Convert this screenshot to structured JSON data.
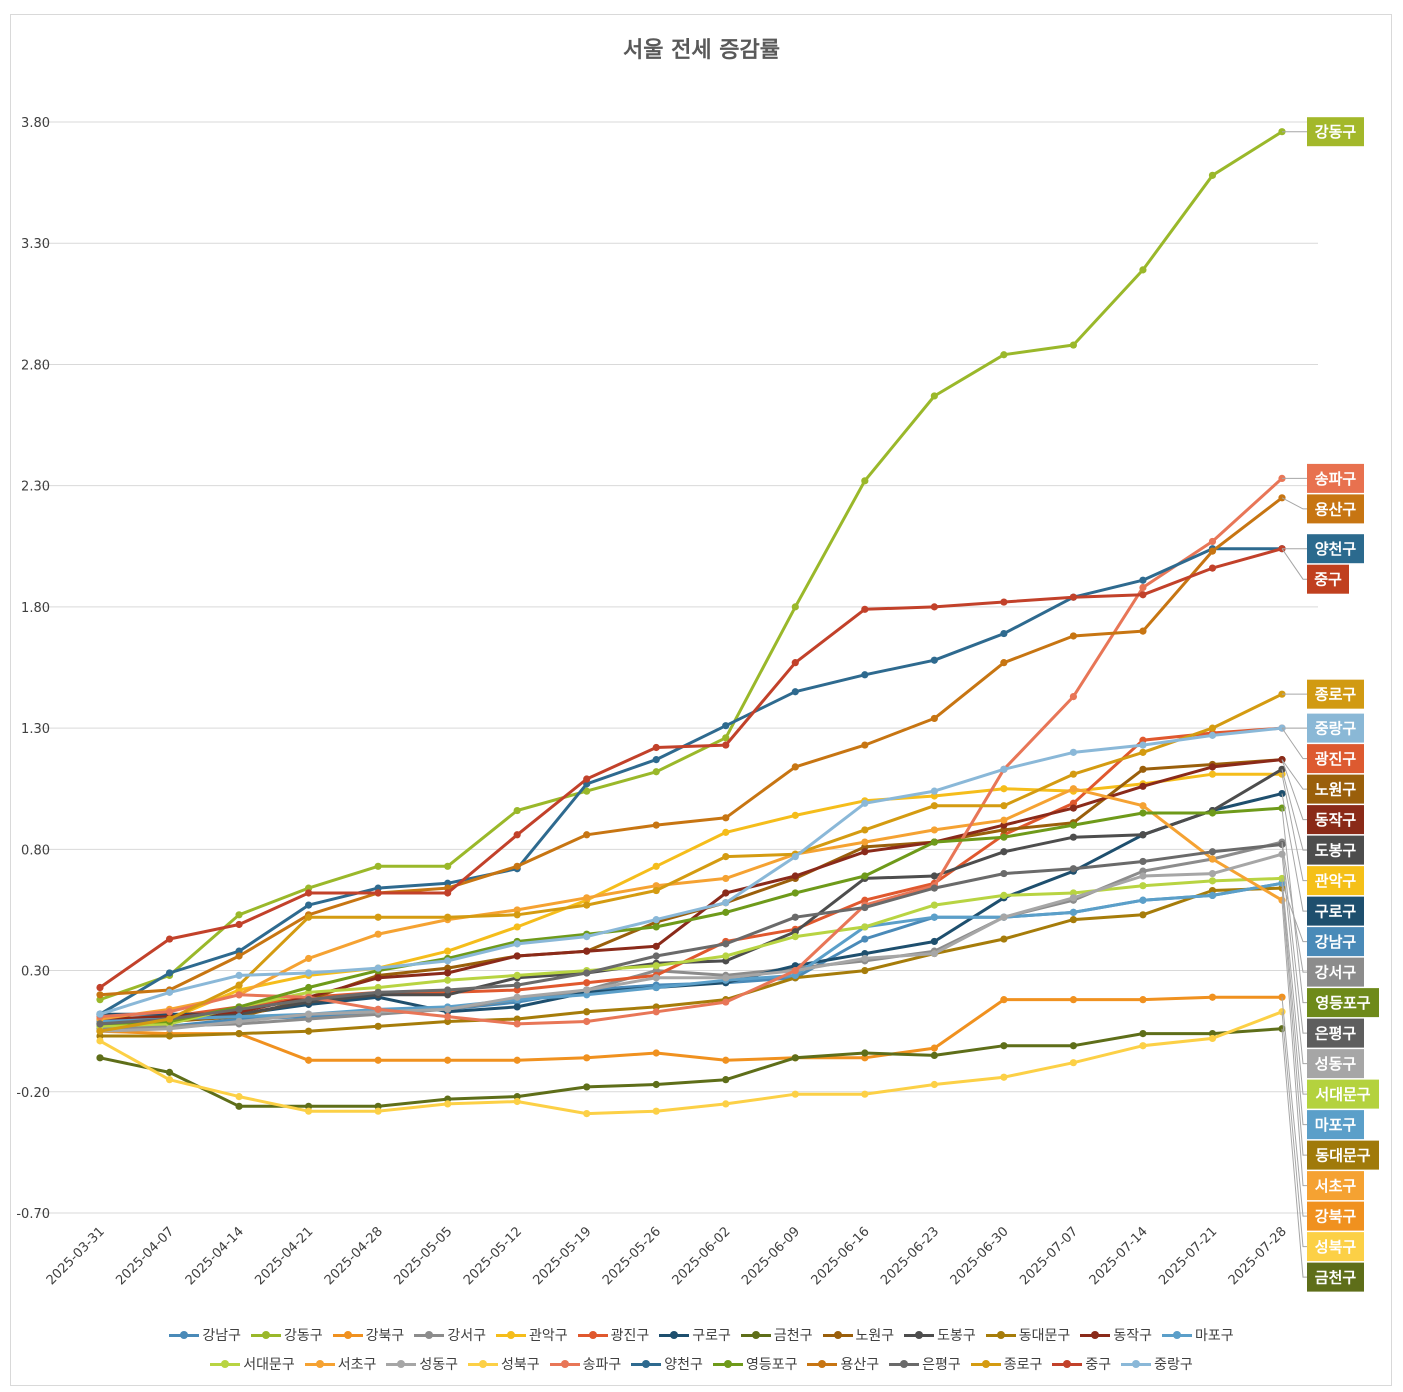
{
  "chart_data": {
    "type": "line",
    "title": "서울 전세 증감률",
    "xlabel": "",
    "ylabel": "",
    "ylim": [
      -0.7,
      4.05
    ],
    "yticks": [
      "-0.70",
      "-0.20",
      "0.30",
      "0.80",
      "1.30",
      "1.80",
      "2.30",
      "2.80",
      "3.30",
      "3.80"
    ],
    "grid": true,
    "legend_position": "bottom",
    "x": [
      "2025-03-31",
      "2025-04-07",
      "2025-04-14",
      "2025-04-21",
      "2025-04-28",
      "2025-05-05",
      "2025-05-12",
      "2025-05-19",
      "2025-05-26",
      "2025-06-02",
      "2025-06-09",
      "2025-06-16",
      "2025-06-23",
      "2025-06-30",
      "2025-07-07",
      "2025-07-14",
      "2025-07-21",
      "2025-07-28"
    ],
    "series": [
      {
        "name": "강남구",
        "color": "#4a8ab8",
        "values": [
          0.07,
          0.07,
          0.1,
          0.11,
          0.13,
          0.14,
          0.17,
          0.22,
          0.24,
          0.25,
          0.27,
          0.43,
          0.52,
          0.52,
          0.54,
          0.59,
          0.61,
          0.66
        ]
      },
      {
        "name": "강동구",
        "color": "#9ab82a",
        "values": [
          0.18,
          0.28,
          0.53,
          0.64,
          0.73,
          0.73,
          0.96,
          1.04,
          1.12,
          1.26,
          1.8,
          2.32,
          2.67,
          2.84,
          2.88,
          3.19,
          3.58,
          3.76
        ]
      },
      {
        "name": "강북구",
        "color": "#f0911f",
        "values": [
          0.05,
          0.04,
          0.04,
          -0.07,
          -0.07,
          -0.07,
          -0.07,
          -0.06,
          -0.04,
          -0.07,
          -0.06,
          -0.06,
          -0.02,
          0.18,
          0.18,
          0.18,
          0.19,
          0.19
        ]
      },
      {
        "name": "강서구",
        "color": "#8c8c8c",
        "values": [
          0.06,
          0.07,
          0.08,
          0.1,
          0.12,
          0.14,
          0.18,
          0.22,
          0.3,
          0.28,
          0.31,
          0.34,
          0.38,
          0.52,
          0.59,
          0.71,
          0.76,
          0.83
        ]
      },
      {
        "name": "관악구",
        "color": "#f5bd1b",
        "values": [
          0.09,
          0.1,
          0.22,
          0.28,
          0.31,
          0.38,
          0.48,
          0.59,
          0.73,
          0.87,
          0.94,
          1.0,
          1.02,
          1.05,
          1.04,
          1.07,
          1.11,
          1.11
        ]
      },
      {
        "name": "광진구",
        "color": "#e0582e",
        "values": [
          0.1,
          0.11,
          0.15,
          0.19,
          0.21,
          0.21,
          0.22,
          0.25,
          0.28,
          0.42,
          0.47,
          0.59,
          0.66,
          0.86,
          0.99,
          1.25,
          1.28,
          1.3
        ]
      },
      {
        "name": "구로구",
        "color": "#1e4f6e",
        "values": [
          0.12,
          0.12,
          0.12,
          0.16,
          0.19,
          0.13,
          0.15,
          0.21,
          0.23,
          0.25,
          0.32,
          0.37,
          0.42,
          0.6,
          0.71,
          0.86,
          0.96,
          1.03
        ]
      },
      {
        "name": "금천구",
        "color": "#5e6e19",
        "values": [
          -0.06,
          -0.12,
          -0.26,
          -0.26,
          -0.26,
          -0.23,
          -0.22,
          -0.18,
          -0.17,
          -0.15,
          -0.06,
          -0.04,
          -0.05,
          -0.01,
          -0.01,
          0.04,
          0.04,
          0.06
        ]
      },
      {
        "name": "노원구",
        "color": "#9a5f0b",
        "values": [
          0.09,
          0.09,
          0.11,
          0.18,
          0.28,
          0.31,
          0.36,
          0.38,
          0.5,
          0.58,
          0.68,
          0.81,
          0.83,
          0.88,
          0.91,
          1.13,
          1.15,
          1.17
        ]
      },
      {
        "name": "도봉구",
        "color": "#4d4d4d",
        "values": [
          0.08,
          0.1,
          0.12,
          0.17,
          0.2,
          0.2,
          0.27,
          0.29,
          0.33,
          0.34,
          0.46,
          0.68,
          0.69,
          0.79,
          0.85,
          0.86,
          0.96,
          1.13
        ]
      },
      {
        "name": "동대문구",
        "color": "#a67c0a",
        "values": [
          0.03,
          0.03,
          0.04,
          0.05,
          0.07,
          0.09,
          0.1,
          0.13,
          0.15,
          0.18,
          0.27,
          0.3,
          0.37,
          0.43,
          0.51,
          0.53,
          0.63,
          0.64
        ]
      },
      {
        "name": "동작구",
        "color": "#8a2a1a",
        "values": [
          0.1,
          0.11,
          0.13,
          0.19,
          0.27,
          0.29,
          0.36,
          0.38,
          0.4,
          0.62,
          0.69,
          0.79,
          0.83,
          0.9,
          0.97,
          1.06,
          1.14,
          1.17
        ]
      },
      {
        "name": "마포구",
        "color": "#5b9fc9",
        "values": [
          0.09,
          0.1,
          0.11,
          0.12,
          0.14,
          0.15,
          0.18,
          0.2,
          0.23,
          0.26,
          0.28,
          0.48,
          0.52,
          0.52,
          0.54,
          0.59,
          0.61,
          0.66
        ]
      },
      {
        "name": "서대문구",
        "color": "#b8d442",
        "values": [
          0.07,
          0.08,
          0.15,
          0.21,
          0.23,
          0.26,
          0.28,
          0.3,
          0.32,
          0.36,
          0.44,
          0.48,
          0.57,
          0.61,
          0.62,
          0.65,
          0.67,
          0.68
        ]
      },
      {
        "name": "서초구",
        "color": "#f5a232",
        "values": [
          0.1,
          0.14,
          0.2,
          0.35,
          0.45,
          0.51,
          0.55,
          0.6,
          0.65,
          0.68,
          0.78,
          0.83,
          0.88,
          0.92,
          1.05,
          0.98,
          0.76,
          0.59
        ]
      },
      {
        "name": "성동구",
        "color": "#a6a6a6",
        "values": [
          0.05,
          0.06,
          0.09,
          0.12,
          0.13,
          0.14,
          0.19,
          0.22,
          0.27,
          0.27,
          0.3,
          0.35,
          0.37,
          0.52,
          0.6,
          0.69,
          0.7,
          0.78
        ]
      },
      {
        "name": "성북구",
        "color": "#fcd046",
        "values": [
          0.01,
          -0.15,
          -0.22,
          -0.28,
          -0.28,
          -0.25,
          -0.24,
          -0.29,
          -0.28,
          -0.25,
          -0.21,
          -0.21,
          -0.17,
          -0.14,
          -0.08,
          -0.01,
          0.02,
          0.13
        ]
      },
      {
        "name": "송파구",
        "color": "#e87657",
        "values": [
          0.11,
          0.13,
          0.2,
          0.19,
          0.14,
          0.11,
          0.08,
          0.09,
          0.13,
          0.17,
          0.3,
          0.57,
          0.65,
          1.13,
          1.43,
          1.88,
          2.07,
          2.33
        ]
      },
      {
        "name": "양천구",
        "color": "#2e6a8f",
        "values": [
          0.12,
          0.29,
          0.38,
          0.57,
          0.64,
          0.66,
          0.72,
          1.07,
          1.17,
          1.31,
          1.45,
          1.52,
          1.58,
          1.69,
          1.84,
          1.91,
          2.04,
          2.04
        ]
      },
      {
        "name": "영등포구",
        "color": "#6e9a1a",
        "values": [
          0.08,
          0.09,
          0.15,
          0.23,
          0.3,
          0.35,
          0.42,
          0.45,
          0.48,
          0.54,
          0.62,
          0.69,
          0.83,
          0.85,
          0.9,
          0.95,
          0.95,
          0.97
        ]
      },
      {
        "name": "용산구",
        "color": "#c77512",
        "values": [
          0.2,
          0.22,
          0.36,
          0.53,
          0.62,
          0.64,
          0.73,
          0.86,
          0.9,
          0.93,
          1.14,
          1.23,
          1.34,
          1.57,
          1.68,
          1.7,
          2.03,
          2.25
        ]
      },
      {
        "name": "은평구",
        "color": "#6a6a6a",
        "values": [
          0.08,
          0.1,
          0.14,
          0.18,
          0.21,
          0.22,
          0.24,
          0.29,
          0.36,
          0.41,
          0.52,
          0.56,
          0.64,
          0.7,
          0.72,
          0.75,
          0.79,
          0.82
        ]
      },
      {
        "name": "종로구",
        "color": "#d49b11",
        "values": [
          0.05,
          0.1,
          0.24,
          0.52,
          0.52,
          0.52,
          0.53,
          0.57,
          0.63,
          0.77,
          0.78,
          0.88,
          0.98,
          0.98,
          1.11,
          1.2,
          1.3,
          1.44
        ]
      },
      {
        "name": "중구",
        "color": "#c2412a",
        "values": [
          0.23,
          0.43,
          0.49,
          0.62,
          0.62,
          0.62,
          0.86,
          1.09,
          1.22,
          1.23,
          1.57,
          1.79,
          1.8,
          1.82,
          1.84,
          1.85,
          1.96,
          2.04
        ]
      },
      {
        "name": "중랑구",
        "color": "#8ab8d8",
        "values": [
          0.12,
          0.21,
          0.28,
          0.29,
          0.31,
          0.34,
          0.41,
          0.44,
          0.51,
          0.58,
          0.77,
          0.99,
          1.04,
          1.13,
          1.2,
          1.23,
          1.27,
          1.3
        ]
      }
    ],
    "end_labels": [
      {
        "name": "강동구",
        "color": "#a3b82a",
        "text_color": "#ffffff"
      },
      {
        "name": "송파구",
        "color": "#e8714f",
        "text_color": "#ffffff"
      },
      {
        "name": "용산구",
        "color": "#c77512",
        "text_color": "#ffffff"
      },
      {
        "name": "양천구",
        "color": "#2b6a8e",
        "text_color": "#ffffff"
      },
      {
        "name": "중구",
        "color": "#c0401f",
        "text_color": "#ffffff"
      },
      {
        "name": "종로구",
        "color": "#d19a12",
        "text_color": "#ffffff"
      },
      {
        "name": "중랑구",
        "color": "#8ab8d6",
        "text_color": "#ffffff"
      },
      {
        "name": "광진구",
        "color": "#dd5a30",
        "text_color": "#ffffff"
      },
      {
        "name": "노원구",
        "color": "#9a5f0b",
        "text_color": "#ffffff"
      },
      {
        "name": "동작구",
        "color": "#8a2a18",
        "text_color": "#ffffff"
      },
      {
        "name": "도봉구",
        "color": "#4d4d4d",
        "text_color": "#ffffff"
      },
      {
        "name": "관악구",
        "color": "#f5c018",
        "text_color": "#ffffff"
      },
      {
        "name": "구로구",
        "color": "#1e4f6e",
        "text_color": "#ffffff"
      },
      {
        "name": "강남구",
        "color": "#4a8ab8",
        "text_color": "#ffffff"
      },
      {
        "name": "강서구",
        "color": "#8c8c8c",
        "text_color": "#ffffff"
      },
      {
        "name": "영등포구",
        "color": "#6e8a1a",
        "text_color": "#ffffff"
      },
      {
        "name": "은평구",
        "color": "#5e5e5e",
        "text_color": "#ffffff"
      },
      {
        "name": "성동구",
        "color": "#a6a6a6",
        "text_color": "#ffffff"
      },
      {
        "name": "서대문구",
        "color": "#b4d23e",
        "text_color": "#ffffff"
      },
      {
        "name": "마포구",
        "color": "#5b9fc9",
        "text_color": "#ffffff"
      },
      {
        "name": "동대문구",
        "color": "#a07a0a",
        "text_color": "#ffffff"
      },
      {
        "name": "서초구",
        "color": "#f5a232",
        "text_color": "#ffffff"
      },
      {
        "name": "강북구",
        "color": "#f0911f",
        "text_color": "#ffffff"
      },
      {
        "name": "성북구",
        "color": "#fcd046",
        "text_color": "#ffffff"
      },
      {
        "name": "금천구",
        "color": "#5e6e19",
        "text_color": "#ffffff"
      }
    ]
  }
}
